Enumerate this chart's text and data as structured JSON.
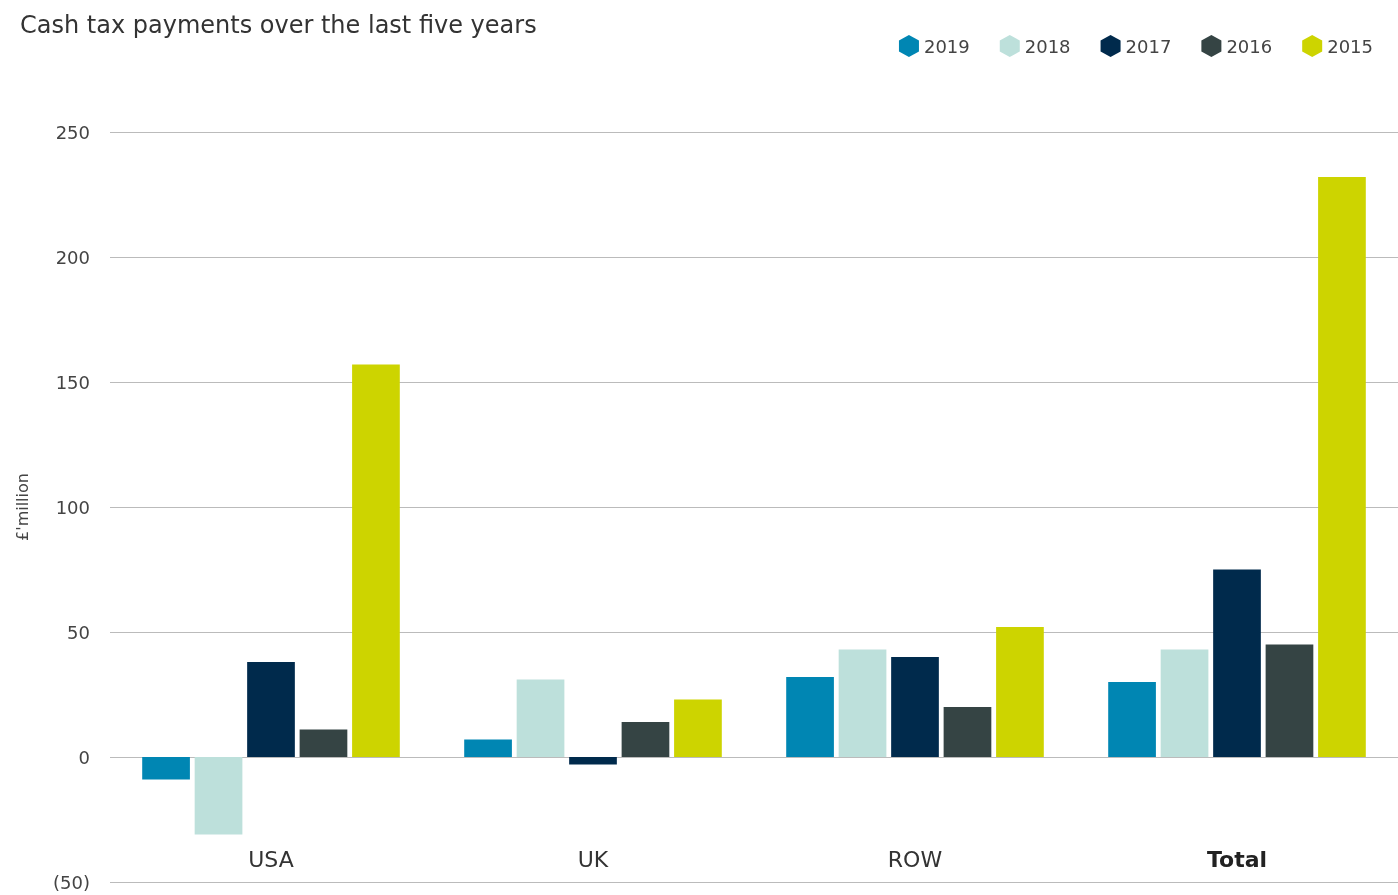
{
  "chart_data": {
    "type": "bar",
    "title": "Cash tax payments over the last five years",
    "ylabel": "£'million",
    "categories": [
      "USA",
      "UK",
      "ROW",
      "Total"
    ],
    "series": [
      {
        "name": "2019",
        "color": "#0086b3",
        "values": [
          -9,
          7,
          32,
          30
        ]
      },
      {
        "name": "2018",
        "color": "#bde0db",
        "values": [
          -31,
          31,
          43,
          43
        ]
      },
      {
        "name": "2017",
        "color": "#002a4c",
        "values": [
          38,
          -3,
          40,
          75
        ]
      },
      {
        "name": "2016",
        "color": "#354444",
        "values": [
          11,
          14,
          20,
          45
        ]
      },
      {
        "name": "2015",
        "color": "#cdd400",
        "values": [
          157,
          23,
          52,
          232
        ]
      }
    ],
    "ylim": [
      -50,
      250
    ],
    "yticks": [
      {
        "value": -50,
        "label": "(50)"
      },
      0,
      50,
      100,
      150,
      200,
      250
    ],
    "grid": "y",
    "legend": "top right"
  }
}
